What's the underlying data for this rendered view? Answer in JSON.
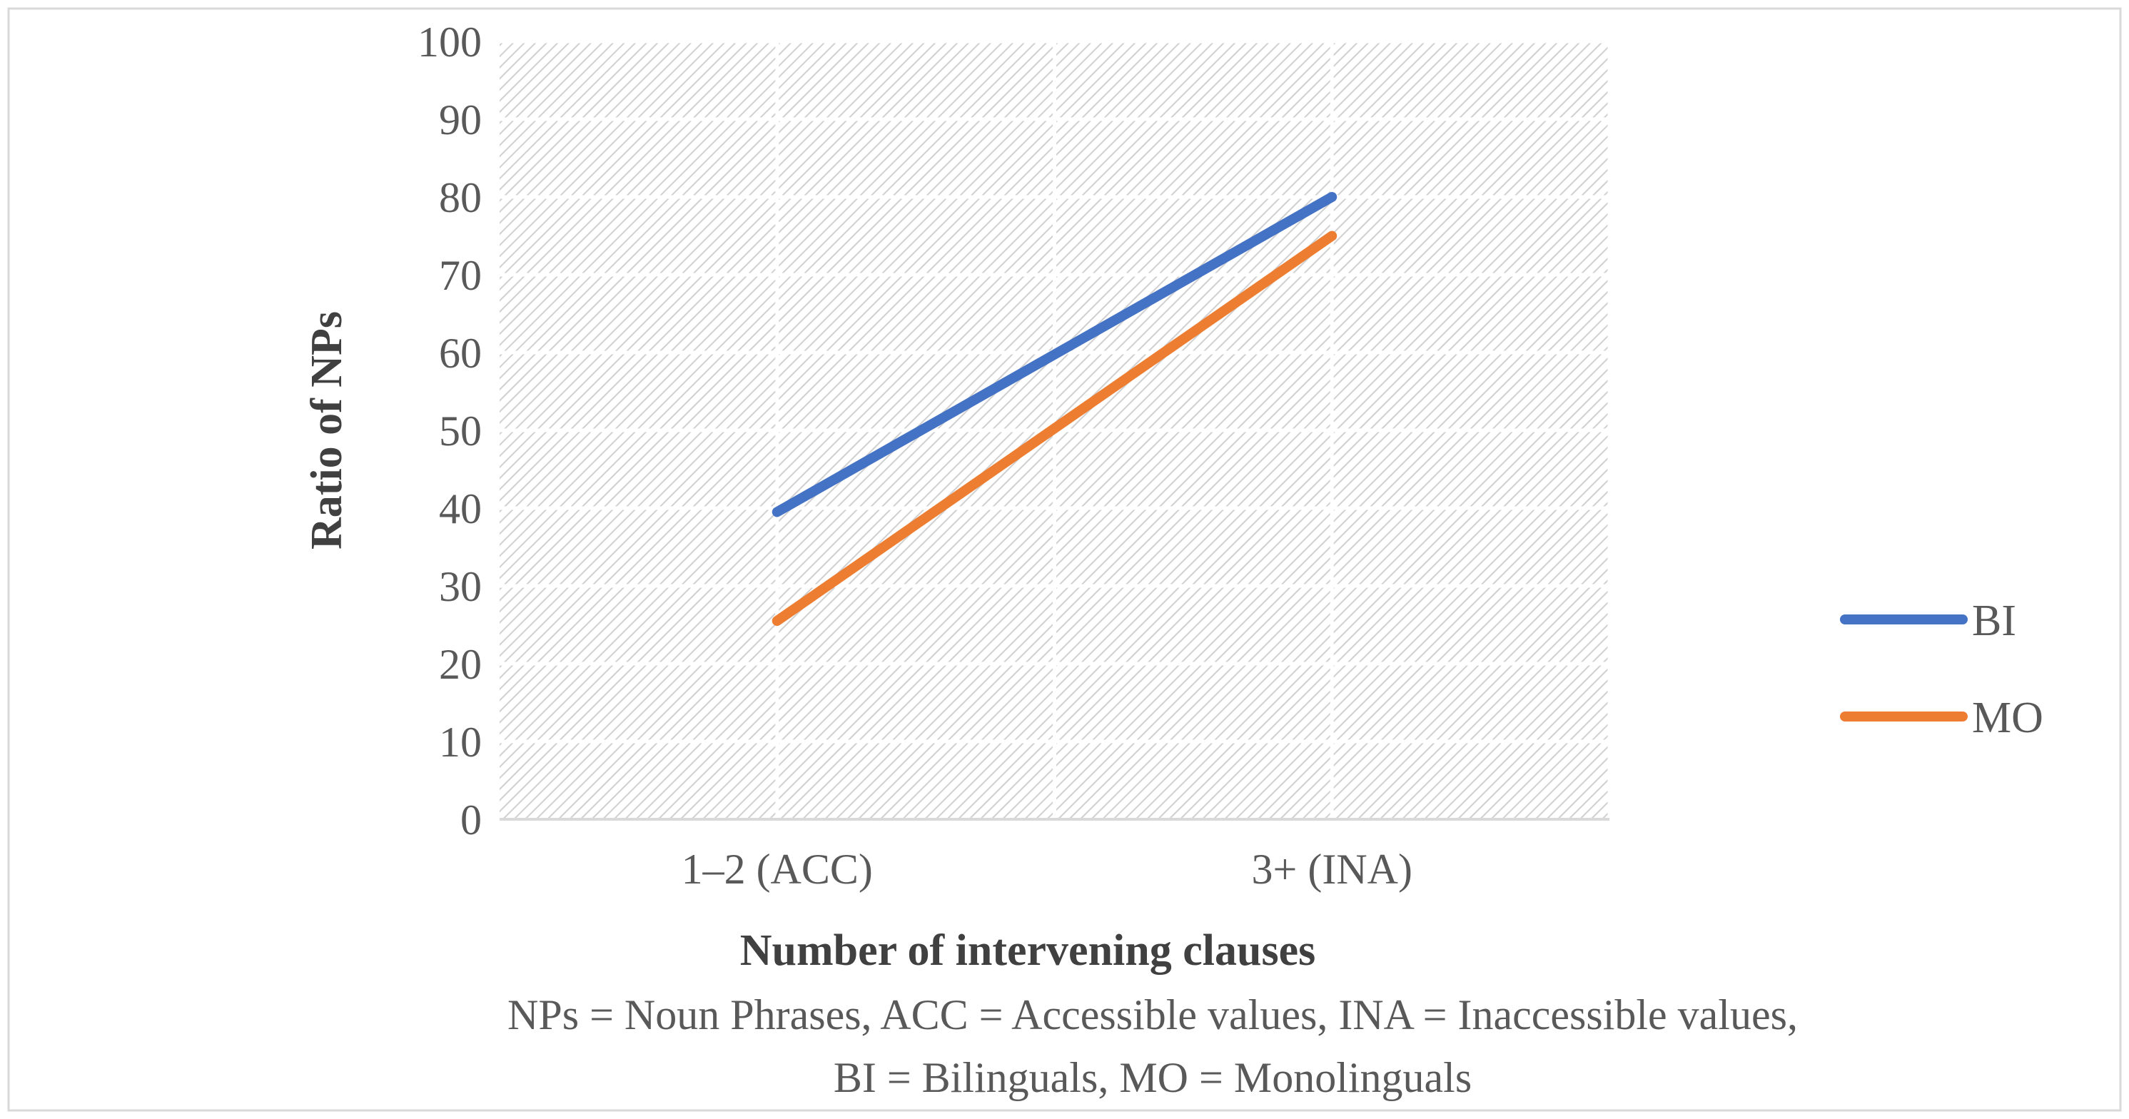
{
  "chart_data": {
    "type": "line",
    "title": "",
    "categories": [
      "1–2 (ACC)",
      "3+ (INA)"
    ],
    "series": [
      {
        "name": "BI",
        "color": "#4472C4",
        "values": [
          39.5,
          80
        ]
      },
      {
        "name": "MO",
        "color": "#ED7D31",
        "values": [
          25.5,
          75
        ]
      }
    ],
    "xlabel": "Number of intervening clauses",
    "ylabel": "Ratio of  NPs",
    "ylim": [
      0,
      100
    ],
    "yticks": [
      0,
      10,
      20,
      30,
      40,
      50,
      60,
      70,
      80,
      90,
      100
    ],
    "grid": true,
    "legend_position": "right",
    "caption": [
      "NPs = Noun Phrases, ACC = Accessible values, INA = Inaccessible values,",
      "BI = Bilinguals, MO = Monolinguals"
    ]
  }
}
